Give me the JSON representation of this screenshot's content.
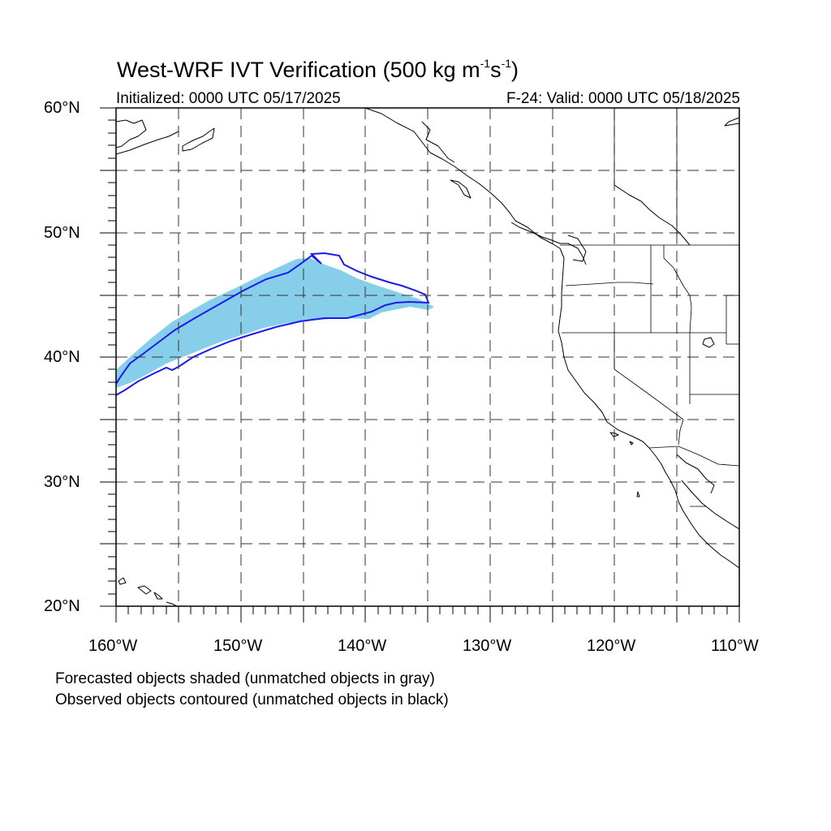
{
  "title": {
    "prefix": "West-WRF IVT Verification (500 kg m",
    "exp1": "-1",
    "mid": "s",
    "exp2": "-1",
    "suffix": ")"
  },
  "subtitle_left": "Initialized: 0000 UTC 05/17/2025",
  "subtitle_right": "F-24: Valid: 0000 UTC 05/18/2025",
  "lat_labels": [
    "60°N",
    "50°N",
    "40°N",
    "30°N",
    "20°N"
  ],
  "lon_labels": [
    "160°W",
    "150°W",
    "140°W",
    "130°W",
    "120°W",
    "110°W"
  ],
  "notes": [
    "Forecasted objects shaded (unmatched objects in gray)",
    "Observed objects contoured (unmatched objects in black)"
  ],
  "map": {
    "lon_range": [
      -160,
      -110
    ],
    "lat_range": [
      20,
      60
    ],
    "grid_spacing_deg": 5,
    "colors": {
      "forecast_fill": "#87ceeb",
      "observed_contour": "#1a1aee",
      "coastline": "#000000"
    }
  }
}
